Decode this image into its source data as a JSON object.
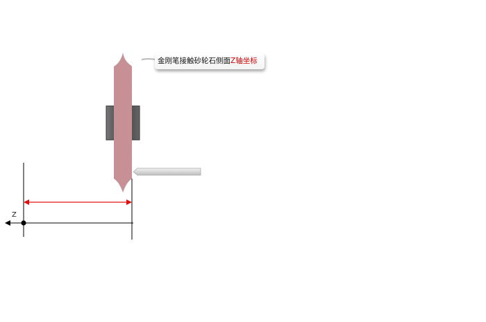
{
  "callout": {
    "text": "金刚笔接触砂轮石侧面",
    "highlight": "Z轴坐标",
    "highlight_color": "#d40000"
  },
  "axis": {
    "label": "Z"
  },
  "colors": {
    "wheel": "#c98a8f",
    "hub": "#555555",
    "dimension_line": "#e01010",
    "pointer": "#d6d6d6"
  },
  "icons": {
    "axis_arrow": "left-arrow-icon",
    "origin": "origin-dot-icon"
  }
}
